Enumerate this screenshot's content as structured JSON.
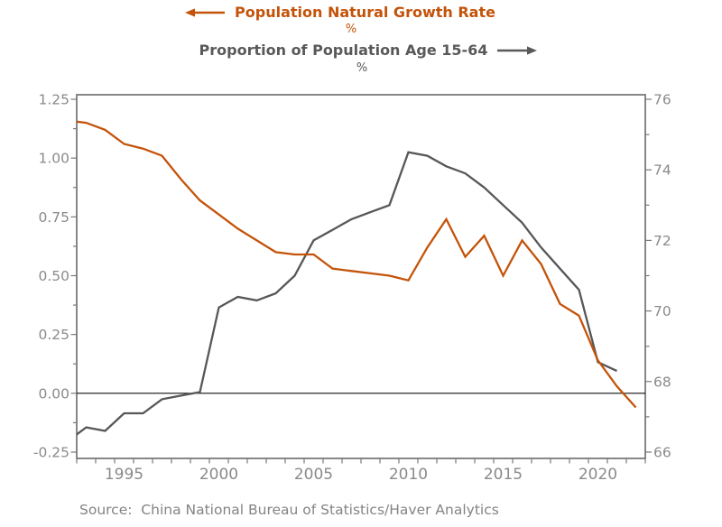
{
  "header": {
    "series1_title": "Population Natural Growth Rate",
    "series1_unit": "%",
    "series1_color": "#c4530a",
    "series2_title": "Proportion of Population Age 15-64",
    "series2_unit": "%",
    "series2_color": "#595959"
  },
  "source_note": "Source:  China National Bureau of Statistics/Haver Analytics",
  "chart_data": {
    "type": "line",
    "title": "",
    "grid": false,
    "legend_position": "top-arrows",
    "x_axis": {
      "range": [
        1993,
        2023
      ],
      "tick_step": 1,
      "label_years": [
        1995,
        2000,
        2005,
        2010,
        2015,
        2020
      ]
    },
    "left_axis": {
      "unit": "%",
      "series": "Population Natural Growth Rate",
      "min": -0.25,
      "max": 1.25,
      "major_ticks": [
        {
          "v": 1.25,
          "label": "1.25"
        },
        {
          "v": 1.0,
          "label": "1.00"
        },
        {
          "v": 0.75,
          "label": "0.75"
        },
        {
          "v": 0.5,
          "label": "0.50"
        },
        {
          "v": 0.25,
          "label": "0.25"
        },
        {
          "v": 0.0,
          "label": "0.00"
        },
        {
          "v": -0.25,
          "label": "-0.25"
        }
      ],
      "minor_ticks": [
        1.125,
        0.875,
        0.625,
        0.375,
        0.125,
        -0.125
      ]
    },
    "right_axis": {
      "unit": "%",
      "series": "Proportion of Population Age 15-64",
      "min": 66,
      "max": 76,
      "major_ticks": [
        {
          "v": 76,
          "label": "76"
        },
        {
          "v": 74,
          "label": "74"
        },
        {
          "v": 72,
          "label": "72"
        },
        {
          "v": 70,
          "label": "70"
        },
        {
          "v": 68,
          "label": "68"
        },
        {
          "v": 66,
          "label": "66"
        }
      ],
      "minor_ticks": [
        75,
        73,
        71,
        69,
        67
      ]
    },
    "zero_line_value": 0,
    "series": [
      {
        "name": "Population Natural Growth Rate",
        "axis": "left",
        "color": "#c4530a",
        "years": [
          1992,
          1993,
          1994,
          1995,
          1996,
          1997,
          1998,
          1999,
          2000,
          2001,
          2002,
          2003,
          2004,
          2005,
          2006,
          2007,
          2008,
          2009,
          2010,
          2011,
          2012,
          2013,
          2014,
          2015,
          2016,
          2017,
          2018,
          2019,
          2020,
          2021,
          2022
        ],
        "values": [
          1.16,
          1.15,
          1.12,
          1.06,
          1.04,
          1.01,
          0.91,
          0.82,
          0.76,
          0.7,
          0.65,
          0.6,
          0.59,
          0.59,
          0.53,
          0.52,
          0.51,
          0.5,
          0.48,
          0.62,
          0.74,
          0.58,
          0.67,
          0.5,
          0.65,
          0.55,
          0.38,
          0.33,
          0.14,
          0.03,
          -0.06
        ]
      },
      {
        "name": "Proportion of Population Age 15-64",
        "axis": "right",
        "color": "#575757",
        "years": [
          1992,
          1993,
          1994,
          1995,
          1996,
          1997,
          1998,
          1999,
          2000,
          2001,
          2002,
          2003,
          2004,
          2005,
          2006,
          2007,
          2008,
          2009,
          2010,
          2011,
          2012,
          2013,
          2014,
          2015,
          2016,
          2017,
          2018,
          2019,
          2020,
          2021
        ],
        "values": [
          66.3,
          66.7,
          66.6,
          67.1,
          67.1,
          67.5,
          67.6,
          67.7,
          70.1,
          70.4,
          70.3,
          70.5,
          71.0,
          72.0,
          72.3,
          72.6,
          72.8,
          73.0,
          74.5,
          74.4,
          74.1,
          73.9,
          73.5,
          73.0,
          72.5,
          71.8,
          71.2,
          70.6,
          68.55,
          68.3
        ]
      }
    ]
  }
}
